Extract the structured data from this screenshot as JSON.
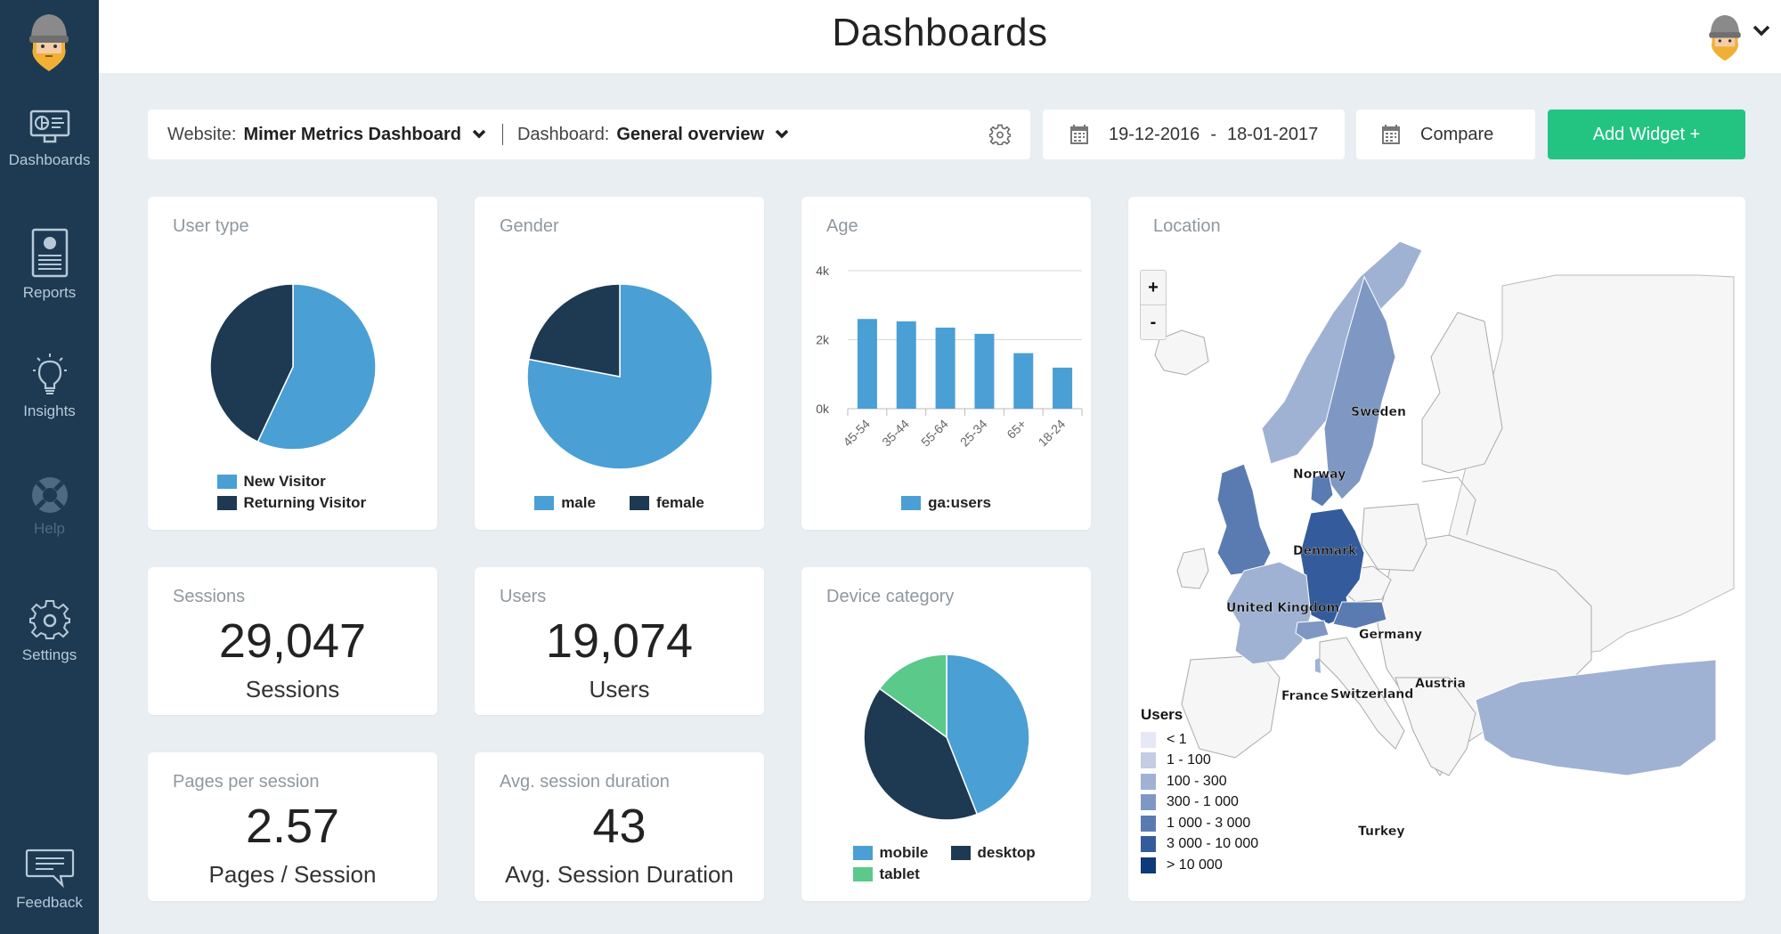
{
  "app": {
    "page_title": "Dashboards"
  },
  "sidebar": {
    "items": [
      {
        "label": "Dashboards",
        "icon": "monitor-chart-icon",
        "enabled": true
      },
      {
        "label": "Reports",
        "icon": "report-document-icon",
        "enabled": true
      },
      {
        "label": "Insights",
        "icon": "lightbulb-icon",
        "enabled": true
      },
      {
        "label": "Help",
        "icon": "lifebuoy-icon",
        "enabled": false
      },
      {
        "label": "Settings",
        "icon": "gear-icon",
        "enabled": true
      },
      {
        "label": "Feedback",
        "icon": "speech-bubble-icon",
        "enabled": true
      }
    ]
  },
  "toolbar": {
    "website_label": "Website:",
    "website_value": "Mimer Metrics Dashboard",
    "dashboard_label": "Dashboard:",
    "dashboard_value": "General overview",
    "date_start": "19-12-2016",
    "date_separator": "-",
    "date_end": "18-01-2017",
    "compare_label": "Compare",
    "add_widget_label": "Add Widget +"
  },
  "colors": {
    "sidebar_bg": "#1d3a52",
    "accent_green": "#23c482",
    "series_light_blue": "#4a9fd5",
    "series_dark_navy": "#1e3a52",
    "series_green": "#5ac98a",
    "page_bg": "#e8eef1"
  },
  "widgets": {
    "user_type": {
      "title": "User type"
    },
    "gender": {
      "title": "Gender"
    },
    "age": {
      "title": "Age"
    },
    "location": {
      "title": "Location",
      "zoom_in": "+",
      "zoom_out": "-"
    },
    "device": {
      "title": "Device category"
    },
    "sessions": {
      "title": "Sessions",
      "value": "29,047",
      "label": "Sessions"
    },
    "users": {
      "title": "Users",
      "value": "19,074",
      "label": "Users"
    },
    "pages_per_session": {
      "title": "Pages per session",
      "value": "2.57",
      "label": "Pages / Session"
    },
    "avg_session_duration": {
      "title": "Avg. session duration",
      "value": "43",
      "label": "Avg. Session Duration"
    }
  },
  "chart_data": [
    {
      "id": "user_type",
      "type": "pie",
      "title": "User type",
      "categories": [
        "New Visitor",
        "Returning Visitor"
      ],
      "values": [
        57,
        43
      ],
      "unit": "percent (estimated)",
      "colors": [
        "#4a9fd5",
        "#1e3a52"
      ],
      "legend": "bottom"
    },
    {
      "id": "gender",
      "type": "pie",
      "title": "Gender",
      "categories": [
        "male",
        "female"
      ],
      "values": [
        78,
        22
      ],
      "unit": "percent (estimated)",
      "colors": [
        "#4a9fd5",
        "#1e3a52"
      ],
      "legend": "bottom"
    },
    {
      "id": "age",
      "type": "bar",
      "title": "Age",
      "categories": [
        "45-54",
        "35-44",
        "55-64",
        "25-34",
        "65+",
        "18-24"
      ],
      "series": [
        {
          "name": "ga:users",
          "values": [
            2600,
            2530,
            2350,
            2170,
            1610,
            1190
          ]
        }
      ],
      "xlabel": "ga:users",
      "ylabel": "",
      "ylim": [
        0,
        4000
      ],
      "yticks": [
        "0k",
        "2k",
        "4k"
      ],
      "ytick_values": [
        0,
        2000,
        4000
      ],
      "grid": true,
      "color": "#4a9fd5",
      "legend": "bottom"
    },
    {
      "id": "device",
      "type": "pie",
      "title": "Device category",
      "categories": [
        "mobile",
        "desktop",
        "tablet"
      ],
      "values": [
        44,
        41,
        15
      ],
      "order_drawn": [
        "mobile",
        "desktop",
        "tablet"
      ],
      "unit": "percent (estimated)",
      "colors": [
        "#4a9fd5",
        "#1e3a52",
        "#5ac98a"
      ],
      "legend": "bottom"
    },
    {
      "id": "location",
      "type": "heatmap",
      "title": "Location",
      "legend_title": "Users",
      "legend_bins": [
        {
          "label": "< 1",
          "color": "#e6e9f5"
        },
        {
          "label": "1 - 100",
          "color": "#c3cde3"
        },
        {
          "label": "100 - 300",
          "color": "#9fb2d4"
        },
        {
          "label": "300 - 1 000",
          "color": "#7f98c3"
        },
        {
          "label": "1 000 - 3 000",
          "color": "#5a7bb2"
        },
        {
          "label": "3 000 - 10 000",
          "color": "#345c9c"
        },
        {
          "label": "> 10 000",
          "color": "#0f3a7a"
        }
      ],
      "countries": [
        {
          "name": "Sweden",
          "bin": "300 - 1 000"
        },
        {
          "name": "Norway",
          "bin": "100 - 300"
        },
        {
          "name": "Denmark",
          "bin": "1 000 - 3 000"
        },
        {
          "name": "United Kingdom",
          "bin": "1 000 - 3 000"
        },
        {
          "name": "Germany",
          "bin": "3 000 - 10 000"
        },
        {
          "name": "Austria",
          "bin": "1 000 - 3 000"
        },
        {
          "name": "Switzerland",
          "bin": "300 - 1 000"
        },
        {
          "name": "France",
          "bin": "100 - 300"
        },
        {
          "name": "Turkey",
          "bin": "100 - 300"
        }
      ],
      "legend": "bottom-left"
    }
  ]
}
